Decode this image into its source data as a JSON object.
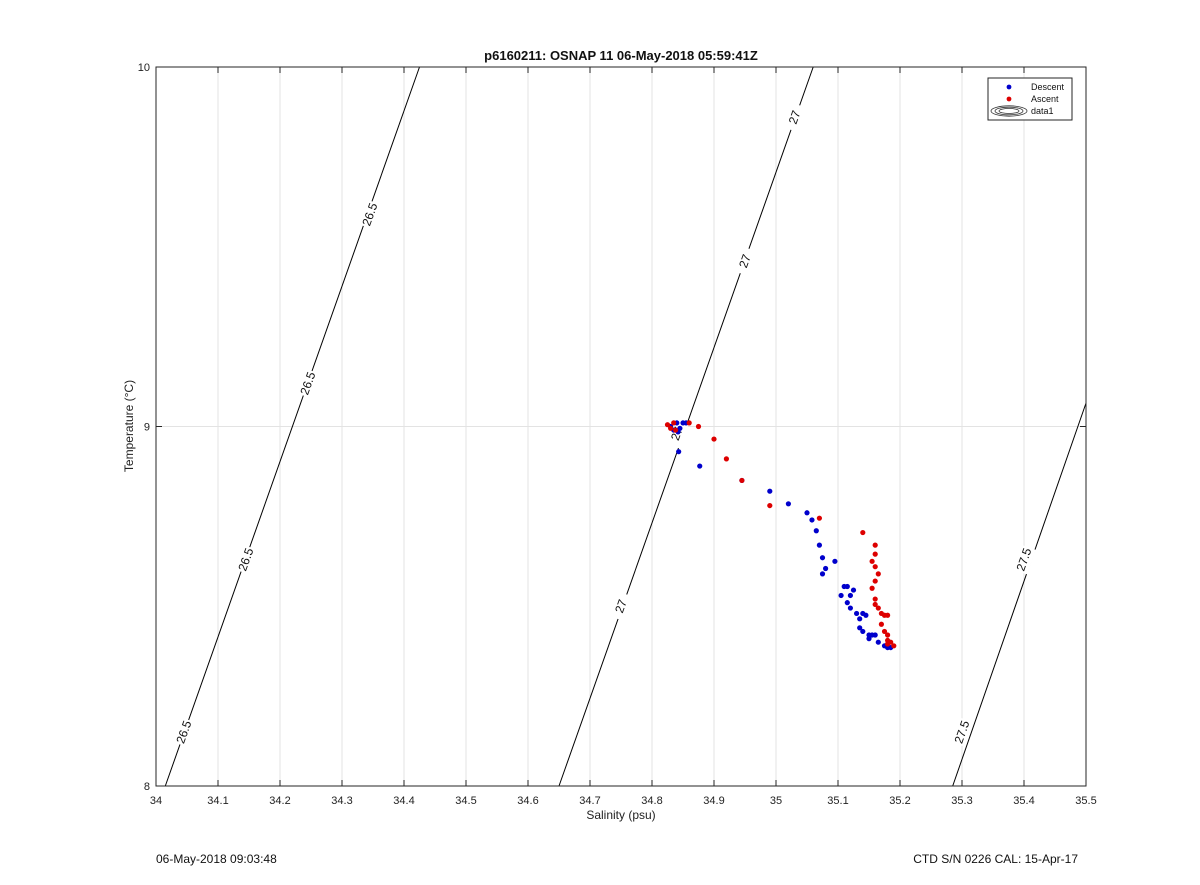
{
  "footer": {
    "left_text": "06-May-2018 09:03:48",
    "right_text": "CTD S/N 0226  CAL: 15-Apr-17"
  },
  "chart_data": {
    "type": "scatter",
    "title": "p6160211: OSNAP 11 06-May-2018 05:59:41Z",
    "xlabel": "Salinity (psu)",
    "ylabel": "Temperature (°C)",
    "xlim": [
      34,
      35.5
    ],
    "ylim": [
      8,
      10
    ],
    "xticks": [
      "34",
      "34.1",
      "34.2",
      "34.3",
      "34.4",
      "34.5",
      "34.6",
      "34.7",
      "34.8",
      "34.9",
      "35",
      "35.1",
      "35.2",
      "35.3",
      "35.4",
      "35.5"
    ],
    "yticks": [
      "8",
      "9",
      "10"
    ],
    "grid": true,
    "legend": {
      "placement": "top-right",
      "entries": [
        "Descent",
        "Ascent",
        "data1"
      ]
    },
    "colors": {
      "descent": "#0000cc",
      "ascent": "#dd0000",
      "contour": "#000000",
      "grid": "#e3e3e3"
    },
    "contours": [
      {
        "level": "26.5",
        "line": [
          [
            34.015,
            8.0
          ],
          [
            34.425,
            10.0
          ]
        ],
        "labels": [
          [
            34.045,
            8.15
          ],
          [
            34.145,
            8.63
          ],
          [
            34.245,
            9.12
          ],
          [
            34.345,
            9.59
          ]
        ]
      },
      {
        "level": "27",
        "line": [
          [
            34.65,
            8.0
          ],
          [
            35.06,
            10.0
          ]
        ],
        "labels": [
          [
            34.75,
            8.5
          ],
          [
            34.84,
            8.98
          ],
          [
            34.95,
            9.46
          ],
          [
            35.03,
            9.86
          ]
        ]
      },
      {
        "level": "27.5",
        "line": [
          [
            35.285,
            8.0
          ],
          [
            35.5,
            9.065
          ]
        ],
        "labels": [
          [
            35.3,
            8.15
          ],
          [
            35.4,
            8.63
          ]
        ]
      }
    ],
    "series": [
      {
        "name": "Descent",
        "points": [
          [
            34.83,
            9.0
          ],
          [
            34.835,
            8.99
          ],
          [
            34.84,
            9.01
          ],
          [
            34.845,
            8.995
          ],
          [
            34.85,
            9.01
          ],
          [
            34.855,
            9.01
          ],
          [
            34.842,
            8.985
          ],
          [
            34.843,
            8.93
          ],
          [
            34.877,
            8.89
          ],
          [
            34.945,
            8.85
          ],
          [
            34.99,
            8.82
          ],
          [
            35.02,
            8.785
          ],
          [
            35.05,
            8.76
          ],
          [
            35.058,
            8.74
          ],
          [
            35.065,
            8.71
          ],
          [
            35.07,
            8.67
          ],
          [
            35.075,
            8.635
          ],
          [
            35.08,
            8.605
          ],
          [
            35.075,
            8.59
          ],
          [
            35.095,
            8.625
          ],
          [
            35.11,
            8.555
          ],
          [
            35.115,
            8.555
          ],
          [
            35.125,
            8.545
          ],
          [
            35.12,
            8.53
          ],
          [
            35.105,
            8.53
          ],
          [
            35.115,
            8.51
          ],
          [
            35.12,
            8.495
          ],
          [
            35.13,
            8.48
          ],
          [
            35.14,
            8.48
          ],
          [
            35.135,
            8.465
          ],
          [
            35.145,
            8.475
          ],
          [
            35.135,
            8.44
          ],
          [
            35.14,
            8.43
          ],
          [
            35.15,
            8.42
          ],
          [
            35.155,
            8.42
          ],
          [
            35.16,
            8.42
          ],
          [
            35.15,
            8.41
          ],
          [
            35.165,
            8.4
          ],
          [
            35.175,
            8.39
          ],
          [
            35.18,
            8.385
          ],
          [
            35.185,
            8.385
          ]
        ]
      },
      {
        "name": "Ascent",
        "points": [
          [
            34.825,
            9.005
          ],
          [
            34.83,
            8.995
          ],
          [
            34.835,
            9.01
          ],
          [
            34.838,
            8.99
          ],
          [
            34.86,
            9.01
          ],
          [
            34.875,
            9.0
          ],
          [
            34.9,
            8.965
          ],
          [
            34.92,
            8.91
          ],
          [
            34.945,
            8.85
          ],
          [
            34.99,
            8.78
          ],
          [
            35.07,
            8.745
          ],
          [
            35.14,
            8.705
          ],
          [
            35.16,
            8.67
          ],
          [
            35.16,
            8.645
          ],
          [
            35.155,
            8.625
          ],
          [
            35.16,
            8.61
          ],
          [
            35.165,
            8.59
          ],
          [
            35.16,
            8.57
          ],
          [
            35.155,
            8.55
          ],
          [
            35.16,
            8.52
          ],
          [
            35.16,
            8.505
          ],
          [
            35.165,
            8.495
          ],
          [
            35.17,
            8.48
          ],
          [
            35.175,
            8.475
          ],
          [
            35.18,
            8.475
          ],
          [
            35.17,
            8.45
          ],
          [
            35.175,
            8.43
          ],
          [
            35.18,
            8.42
          ],
          [
            35.18,
            8.405
          ],
          [
            35.185,
            8.4
          ],
          [
            35.18,
            8.395
          ],
          [
            35.19,
            8.39
          ]
        ]
      }
    ]
  }
}
